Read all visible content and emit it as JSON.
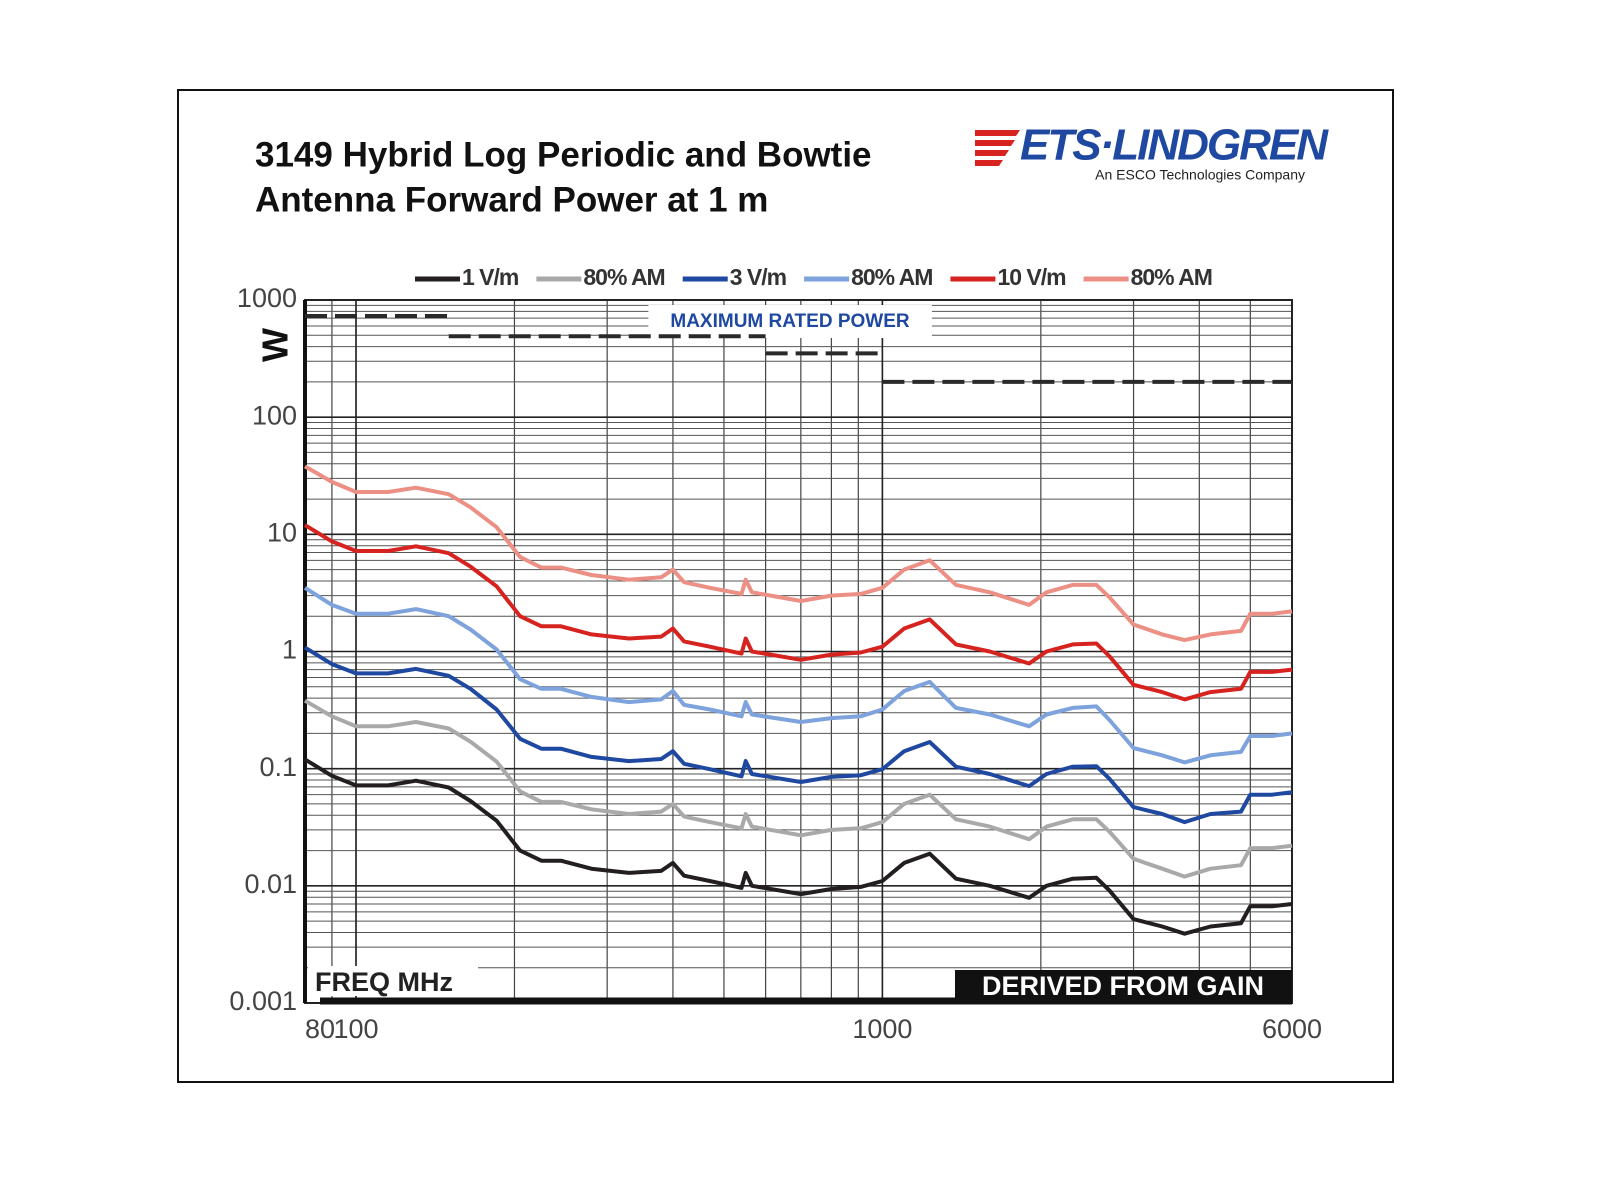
{
  "logo": {
    "name": "ETS·LINDGREN",
    "tagline": "An ESCO Technologies Company"
  },
  "chart_data": {
    "type": "line",
    "title": [
      "3149 Hybrid Log Periodic and Bowtie",
      "Antenna Forward Power at 1 m"
    ],
    "x_label": "FREQ MHz",
    "y_label": "W",
    "annotation": "DERIVED FROM GAIN",
    "xlog": true,
    "ylog": true,
    "grid": true,
    "minor_grid": true,
    "legend": "top",
    "xlim": [
      80,
      6000
    ],
    "ylim": [
      0.001,
      1000
    ],
    "xticks": [
      80,
      100,
      1000,
      6000
    ],
    "yticks": [
      0.001,
      0.01,
      0.1,
      1,
      10,
      100,
      1000
    ],
    "x": [
      80,
      90,
      100,
      115,
      130,
      150,
      165,
      185,
      205,
      225,
      245,
      280,
      330,
      380,
      400,
      420,
      470,
      540,
      550,
      565,
      700,
      800,
      910,
      1000,
      1100,
      1230,
      1380,
      1600,
      1900,
      2050,
      2300,
      2550,
      2700,
      3000,
      3400,
      3750,
      4200,
      4800,
      5000,
      5500,
      6000
    ],
    "series": [
      {
        "name": "1 V/m",
        "color": "#231f20",
        "values": [
          0.12,
          0.087,
          0.072,
          0.072,
          0.079,
          0.069,
          0.053,
          0.036,
          0.02,
          0.0164,
          0.0164,
          0.014,
          0.0129,
          0.0134,
          0.0157,
          0.0122,
          0.011,
          0.0096,
          0.0129,
          0.01,
          0.0085,
          0.0094,
          0.0098,
          0.011,
          0.0157,
          0.0188,
          0.0115,
          0.01,
          0.0079,
          0.01,
          0.0115,
          0.0117,
          0.0091,
          0.0052,
          0.0045,
          0.0039,
          0.0045,
          0.0048,
          0.0067,
          0.0067,
          0.007
        ]
      },
      {
        "name": "80% AM",
        "color": "#a9a9a9",
        "values": [
          0.38,
          0.28,
          0.23,
          0.23,
          0.25,
          0.22,
          0.17,
          0.115,
          0.064,
          0.052,
          0.052,
          0.045,
          0.041,
          0.043,
          0.05,
          0.039,
          0.035,
          0.031,
          0.041,
          0.032,
          0.027,
          0.03,
          0.031,
          0.035,
          0.05,
          0.06,
          0.037,
          0.032,
          0.025,
          0.032,
          0.037,
          0.037,
          0.029,
          0.017,
          0.014,
          0.012,
          0.014,
          0.015,
          0.021,
          0.021,
          0.022
        ]
      },
      {
        "name": "3 V/m",
        "color": "#1f48a0",
        "values": [
          1.08,
          0.78,
          0.65,
          0.65,
          0.71,
          0.62,
          0.48,
          0.32,
          0.18,
          0.148,
          0.148,
          0.126,
          0.116,
          0.121,
          0.141,
          0.11,
          0.099,
          0.086,
          0.116,
          0.09,
          0.077,
          0.085,
          0.088,
          0.099,
          0.141,
          0.169,
          0.104,
          0.09,
          0.071,
          0.09,
          0.104,
          0.105,
          0.082,
          0.047,
          0.041,
          0.035,
          0.041,
          0.043,
          0.06,
          0.06,
          0.063
        ]
      },
      {
        "name": "80% AM",
        "color": "#7ea2dc",
        "values": [
          3.5,
          2.5,
          2.1,
          2.1,
          2.3,
          2.0,
          1.54,
          1.04,
          0.58,
          0.48,
          0.48,
          0.41,
          0.37,
          0.39,
          0.46,
          0.35,
          0.32,
          0.28,
          0.37,
          0.29,
          0.25,
          0.27,
          0.28,
          0.32,
          0.46,
          0.55,
          0.33,
          0.29,
          0.23,
          0.29,
          0.33,
          0.34,
          0.26,
          0.15,
          0.13,
          0.113,
          0.13,
          0.139,
          0.19,
          0.19,
          0.2
        ]
      },
      {
        "name": "10 V/m",
        "color": "#d7231f",
        "values": [
          12,
          8.7,
          7.2,
          7.2,
          7.9,
          6.9,
          5.3,
          3.6,
          2.0,
          1.64,
          1.64,
          1.4,
          1.29,
          1.34,
          1.57,
          1.22,
          1.1,
          0.96,
          1.29,
          1.0,
          0.85,
          0.94,
          0.98,
          1.1,
          1.57,
          1.88,
          1.15,
          1.0,
          0.79,
          1.0,
          1.15,
          1.17,
          0.91,
          0.52,
          0.45,
          0.39,
          0.45,
          0.48,
          0.67,
          0.67,
          0.7
        ]
      },
      {
        "name": "80% AM",
        "color": "#ec8f84",
        "values": [
          38,
          28,
          23,
          23,
          25,
          22,
          17,
          11.5,
          6.4,
          5.2,
          5.2,
          4.5,
          4.1,
          4.3,
          5.0,
          3.9,
          3.5,
          3.1,
          4.1,
          3.2,
          2.7,
          3.0,
          3.1,
          3.5,
          5.0,
          6.0,
          3.7,
          3.2,
          2.5,
          3.2,
          3.7,
          3.7,
          2.9,
          1.7,
          1.4,
          1.25,
          1.4,
          1.5,
          2.1,
          2.1,
          2.2
        ]
      }
    ],
    "max_rated_power": {
      "label": "MAXIMUM RATED POWER",
      "color": "#2a2a2a",
      "segments": [
        {
          "x": [
            80,
            150
          ],
          "values": [
            730,
            730
          ]
        },
        {
          "x": [
            150,
            600
          ],
          "values": [
            490,
            490
          ]
        },
        {
          "x": [
            600,
            1000
          ],
          "values": [
            350,
            350
          ]
        },
        {
          "x": [
            1000,
            6000
          ],
          "values": [
            200,
            200
          ]
        }
      ]
    }
  }
}
